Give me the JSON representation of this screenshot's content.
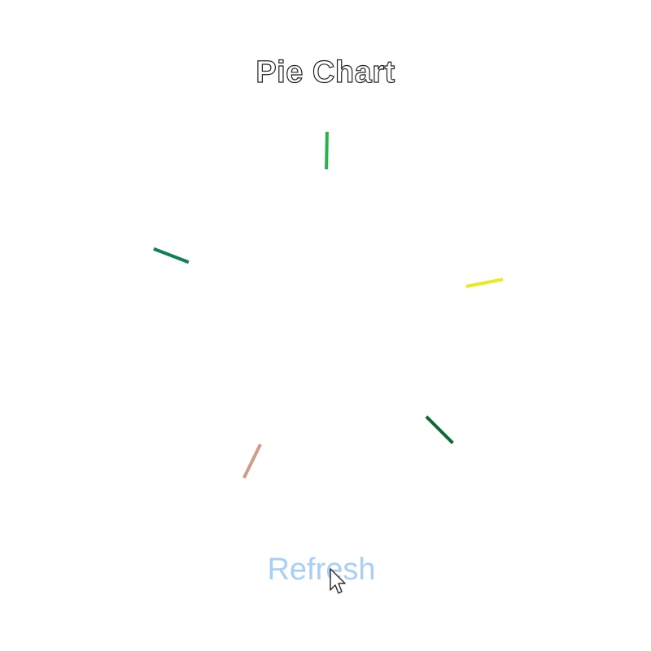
{
  "header": {
    "title": "Pie Chart"
  },
  "actions": {
    "refresh_label": "Refresh"
  },
  "chart_data": {
    "type": "pie",
    "title": "Pie Chart",
    "slices": [
      {
        "color": "#2ab24a"
      },
      {
        "color": "#e7ec1f"
      },
      {
        "color": "#0b6a36"
      },
      {
        "color": "#cf9c8a"
      },
      {
        "color": "#0e7f5a"
      }
    ],
    "divider_angles_deg": [
      1,
      79,
      135,
      206,
      291
    ]
  },
  "colors": {
    "refresh_text": "#a9cff5"
  }
}
